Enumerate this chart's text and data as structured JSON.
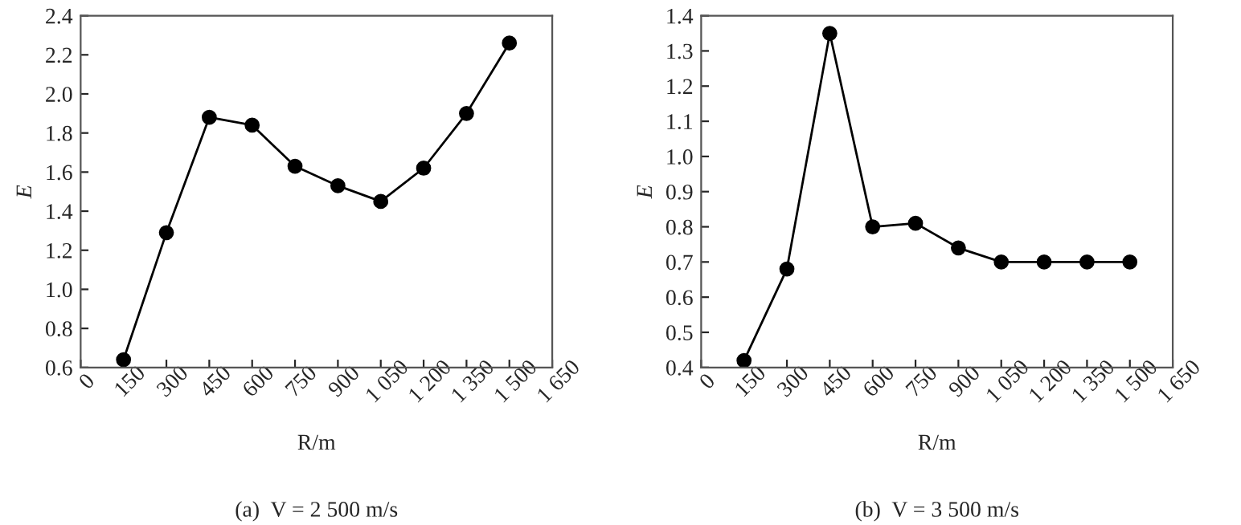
{
  "chart_data": [
    {
      "type": "line",
      "xlabel": "R/m",
      "ylabel": "E",
      "annotations": [
        "(a)  V = 2 500 m/s"
      ],
      "marker": "circle",
      "line_style": "solid",
      "grid": false,
      "x": [
        150,
        300,
        450,
        600,
        750,
        900,
        1050,
        1200,
        1350,
        1500
      ],
      "series": [
        {
          "color": "#000000",
          "values": [
            0.64,
            1.29,
            1.88,
            1.84,
            1.63,
            1.53,
            1.45,
            1.62,
            1.9,
            2.26
          ]
        }
      ],
      "xlim": [
        0,
        1650
      ],
      "xticks": [
        0,
        150,
        300,
        450,
        600,
        750,
        900,
        {
          "value": 1050,
          "label": "1 050"
        },
        {
          "value": 1200,
          "label": "1 200"
        },
        {
          "value": 1350,
          "label": "1 350"
        },
        {
          "value": 1500,
          "label": "1 500"
        },
        {
          "value": 1650,
          "label": "1 650"
        }
      ],
      "ylim": [
        0.6,
        2.4
      ],
      "yticks": [
        {
          "value": 0.6,
          "label": "0.6"
        },
        {
          "value": 0.8,
          "label": "0.8"
        },
        {
          "value": 1.0,
          "label": "1.0"
        },
        {
          "value": 1.2,
          "label": "1.2"
        },
        {
          "value": 1.4,
          "label": "1.4"
        },
        {
          "value": 1.6,
          "label": "1.6"
        },
        {
          "value": 1.8,
          "label": "1.8"
        },
        {
          "value": 2.0,
          "label": "2.0"
        },
        {
          "value": 2.2,
          "label": "2.2"
        },
        {
          "value": 2.4,
          "label": "2.4"
        }
      ]
    },
    {
      "type": "line",
      "xlabel": "R/m",
      "ylabel": "E",
      "annotations": [
        "(b)  V = 3 500 m/s"
      ],
      "marker": "circle",
      "line_style": "solid",
      "grid": false,
      "x": [
        150,
        300,
        450,
        600,
        750,
        900,
        1050,
        1200,
        1350,
        1500
      ],
      "series": [
        {
          "color": "#000000",
          "values": [
            0.42,
            0.68,
            1.35,
            0.8,
            0.81,
            0.74,
            0.7,
            0.7,
            0.7,
            0.7
          ]
        }
      ],
      "xlim": [
        0,
        1650
      ],
      "xticks": [
        0,
        150,
        300,
        450,
        600,
        750,
        900,
        {
          "value": 1050,
          "label": "1 050"
        },
        {
          "value": 1200,
          "label": "1 200"
        },
        {
          "value": 1350,
          "label": "1 350"
        },
        {
          "value": 1500,
          "label": "1 500"
        },
        {
          "value": 1650,
          "label": "1 650"
        }
      ],
      "ylim": [
        0.4,
        1.4
      ],
      "yticks": [
        {
          "value": 0.4,
          "label": "0.4"
        },
        {
          "value": 0.5,
          "label": "0.5"
        },
        {
          "value": 0.6,
          "label": "0.6"
        },
        {
          "value": 0.7,
          "label": "0.7"
        },
        {
          "value": 0.8,
          "label": "0.8"
        },
        {
          "value": 0.9,
          "label": "0.9"
        },
        {
          "value": 1.0,
          "label": "1.0"
        },
        {
          "value": 1.1,
          "label": "1.1"
        },
        {
          "value": 1.2,
          "label": "1.2"
        },
        {
          "value": 1.3,
          "label": "1.3"
        },
        {
          "value": 1.4,
          "label": "1.4"
        }
      ]
    }
  ]
}
